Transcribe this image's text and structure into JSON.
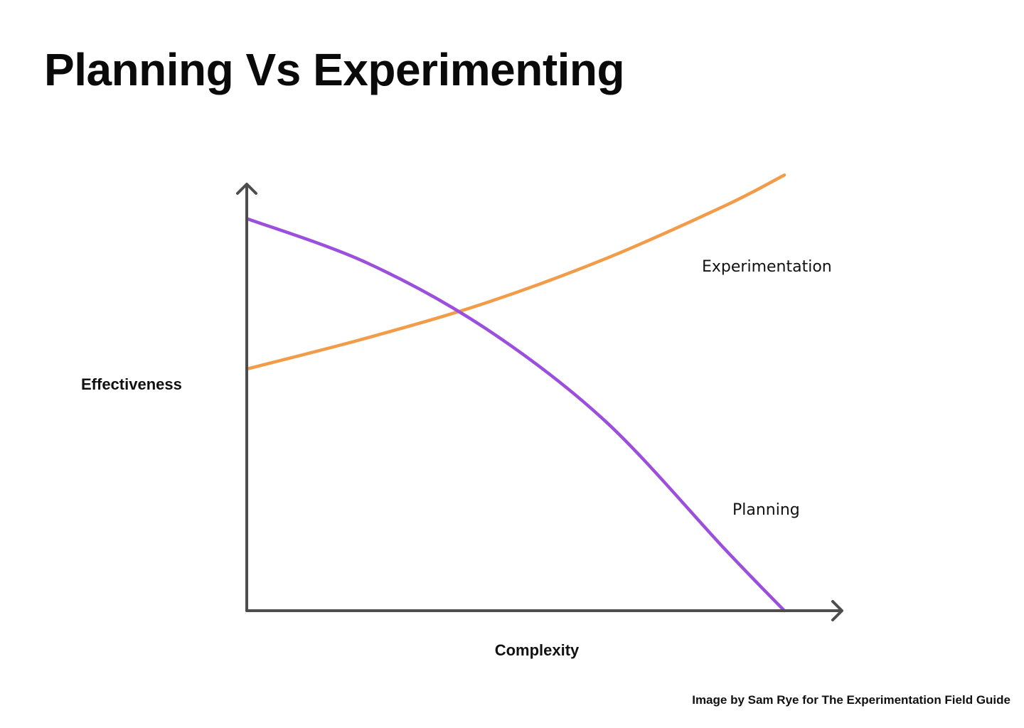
{
  "title": "Planning Vs Experimenting",
  "credit": "Image by Sam Rye for The Experimentation Field Guide",
  "chart_data": {
    "type": "line",
    "title": "Planning Vs Experimenting",
    "xlabel": "Complexity",
    "ylabel": "Effectiveness",
    "xlim": [
      0,
      100
    ],
    "ylim": [
      0,
      100
    ],
    "grid": false,
    "axis_tick_labels": false,
    "legend": "inline labels near line ends",
    "series": [
      {
        "name": "Experimentation",
        "color": "#f29c4a",
        "x": [
          0,
          20,
          40,
          60,
          80,
          90
        ],
        "y": [
          55,
          62,
          70,
          80,
          92,
          99
        ]
      },
      {
        "name": "Planning",
        "color": "#9b4fdc",
        "x": [
          0,
          20,
          40,
          60,
          80,
          90
        ],
        "y": [
          89,
          79,
          64,
          43,
          14,
          0
        ]
      }
    ]
  }
}
